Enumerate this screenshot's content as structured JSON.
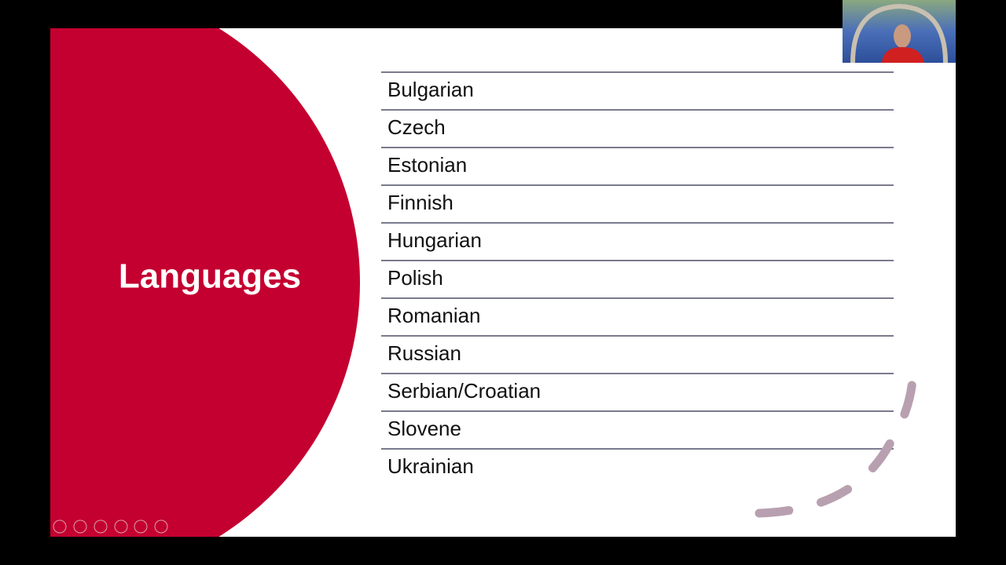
{
  "slide": {
    "title": "Languages",
    "items": [
      "Bulgarian",
      "Czech",
      "Estonian",
      "Finnish",
      "Hungarian",
      "Polish",
      "Romanian",
      "Russian",
      "Serbian/Croatian",
      "Slovene",
      "Ukrainian"
    ]
  }
}
